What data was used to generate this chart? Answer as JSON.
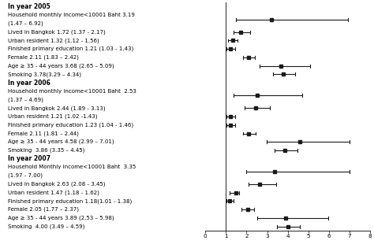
{
  "sections": [
    {
      "header": "In year 2005",
      "items": [
        {
          "label": "Household monthly income<10001 Baht 3.19",
          "label2": "(1.47 – 6.92)",
          "or": 3.19,
          "lo": 1.47,
          "hi": 6.92,
          "two_line": true
        },
        {
          "label": "Lived in Bangkok 1.72 (1.37 - 2.17)",
          "label2": "",
          "or": 1.72,
          "lo": 1.37,
          "hi": 2.17,
          "two_line": false
        },
        {
          "label": "Urban resident 1.32 (1.12 - 1.56)",
          "label2": "",
          "or": 1.32,
          "lo": 1.12,
          "hi": 1.56,
          "two_line": false
        },
        {
          "label": "Finished primary education 1.21 (1.03 - 1.43)",
          "label2": "",
          "or": 1.21,
          "lo": 1.03,
          "hi": 1.43,
          "two_line": false
        },
        {
          "label": "Female 2.11 (1.83 – 2.42)",
          "label2": "",
          "or": 2.11,
          "lo": 1.83,
          "hi": 2.42,
          "two_line": false
        },
        {
          "label": "Age ≥ 35 - 44 years 3.68 (2.65 – 5.09)",
          "label2": "",
          "or": 3.68,
          "lo": 2.65,
          "hi": 5.09,
          "two_line": false
        },
        {
          "label": "Smoking 3.78(3.29 – 4.34)",
          "label2": "",
          "or": 3.78,
          "lo": 3.29,
          "hi": 4.34,
          "two_line": false
        }
      ]
    },
    {
      "header": "In year 2006",
      "items": [
        {
          "label": "Household monthly income<10001 Baht  2.53",
          "label2": "(1.37 – 4.69)",
          "or": 2.53,
          "lo": 1.37,
          "hi": 4.69,
          "two_line": true
        },
        {
          "label": "Lived in Bangkok 2.44 (1.89 - 3.13)",
          "label2": "",
          "or": 2.44,
          "lo": 1.89,
          "hi": 3.13,
          "two_line": false
        },
        {
          "label": "Urban resident 1.21 (1.02 -1.43)",
          "label2": "",
          "or": 1.21,
          "lo": 1.02,
          "hi": 1.43,
          "two_line": false
        },
        {
          "label": "Finished primary education 1.23 (1.04 - 1.46)",
          "label2": "",
          "or": 1.23,
          "lo": 1.04,
          "hi": 1.46,
          "two_line": false
        },
        {
          "label": "Female 2.11 (1.81 – 2.44)",
          "label2": "",
          "or": 2.11,
          "lo": 1.81,
          "hi": 2.44,
          "two_line": false
        },
        {
          "label": "Age ≥ 35 - 44 years 4.58 (2.99 – 7.01)",
          "label2": "",
          "or": 4.58,
          "lo": 2.99,
          "hi": 7.01,
          "two_line": false
        },
        {
          "label": "Smoking  3.86 (3.35 – 4.45)",
          "label2": "",
          "or": 3.86,
          "lo": 3.35,
          "hi": 4.45,
          "two_line": false
        }
      ]
    },
    {
      "header": "In year 2007",
      "items": [
        {
          "label": "Household Monthly income<10001 Baht  3.35",
          "label2": "(1.97 - 7.00)",
          "or": 3.35,
          "lo": 1.97,
          "hi": 7.0,
          "two_line": true
        },
        {
          "label": "Lived in Bangkok 2.63 (2.08 - 3.45)",
          "label2": "",
          "or": 2.63,
          "lo": 2.08,
          "hi": 3.45,
          "two_line": false
        },
        {
          "label": "Urban resident 1.47 (1.18 - 1.62)",
          "label2": "",
          "or": 1.47,
          "lo": 1.18,
          "hi": 1.62,
          "two_line": false
        },
        {
          "label": "Finished primary education 1.18(1.01 - 1.38)",
          "label2": "",
          "or": 1.18,
          "lo": 1.01,
          "hi": 1.38,
          "two_line": false
        },
        {
          "label": "Female 2.05 (1.77 – 2.37)",
          "label2": "",
          "or": 2.05,
          "lo": 1.77,
          "hi": 2.37,
          "two_line": false
        },
        {
          "label": "Age ≥ 35 - 44 years 3.89 (2.53 – 5.98)",
          "label2": "",
          "or": 3.89,
          "lo": 2.53,
          "hi": 5.98,
          "two_line": false
        },
        {
          "label": "Smoking  4.00 (3.49 – 4.59)",
          "label2": "",
          "or": 4.0,
          "lo": 3.49,
          "hi": 4.59,
          "two_line": false
        }
      ]
    }
  ],
  "xmin": 0,
  "xmax": 8,
  "xticks": [
    0,
    1,
    2,
    3,
    4,
    5,
    6,
    7,
    8
  ],
  "vline_x": 1,
  "marker_color": "#1a1a1a",
  "line_color": "#1a1a1a",
  "label_fontsize": 5.0,
  "header_fontsize": 5.5,
  "tick_fontsize": 5.2
}
